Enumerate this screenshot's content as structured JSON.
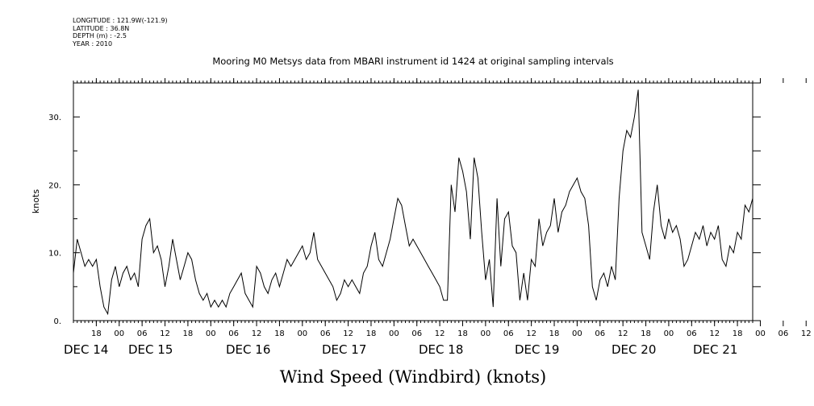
{
  "header": {
    "lines": [
      "LONGITUDE : 121.9W(-121.9)",
      "LATITUDE : 36.8N",
      "DEPTH (m) : -2.5",
      "YEAR : 2010"
    ]
  },
  "chart_data": {
    "type": "line",
    "title": "Mooring M0 Metsys data from MBARI instrument id 1424 at original sampling intervals",
    "xlabel": "Wind Speed (Windbird) (knots)",
    "ylabel": "knots",
    "ylim": [
      0,
      35
    ],
    "xlim": [
      "2010-12-14T12:00",
      "2010-12-21T22:00"
    ],
    "y_ticks": [
      0,
      10,
      20,
      30
    ],
    "y_tick_labels": [
      "0.",
      "10.",
      "20.",
      "30."
    ],
    "hour_tick_labels": [
      "18",
      "00",
      "06",
      "12",
      "18",
      "00",
      "06",
      "12",
      "18",
      "00",
      "06",
      "12",
      "18",
      "00",
      "06",
      "12",
      "18",
      "00",
      "06",
      "12",
      "18",
      "00",
      "06",
      "12",
      "18",
      "00",
      "06",
      "12",
      "18",
      "00",
      "06",
      "12"
    ],
    "day_labels": [
      "DEC 14",
      "DEC 15",
      "DEC 16",
      "DEC 17",
      "DEC 18",
      "DEC 19",
      "DEC 20",
      "DEC 21"
    ],
    "grid": false,
    "series": [
      {
        "color": "#000000",
        "x_hours_from_start": [
          0,
          1,
          2,
          3,
          4,
          5,
          6,
          7,
          8,
          9,
          10,
          11,
          12,
          13,
          14,
          15,
          16,
          17,
          18,
          19,
          20,
          21,
          22,
          23,
          24,
          25,
          26,
          27,
          28,
          29,
          30,
          31,
          32,
          33,
          34,
          35,
          36,
          37,
          38,
          39,
          40,
          41,
          42,
          43,
          44,
          45,
          46,
          47,
          48,
          49,
          50,
          51,
          52,
          53,
          54,
          55,
          56,
          57,
          58,
          59,
          60,
          61,
          62,
          63,
          64,
          65,
          66,
          67,
          68,
          69,
          70,
          71,
          72,
          73,
          74,
          75,
          76,
          77,
          78,
          79,
          80,
          81,
          82,
          83,
          84,
          85,
          86,
          87,
          88,
          89,
          90,
          91,
          92,
          93,
          94,
          95,
          96,
          97,
          98,
          99,
          100,
          101,
          102,
          103,
          104,
          105,
          106,
          107,
          108,
          109,
          110,
          111,
          112,
          113,
          114,
          115,
          116,
          117,
          118,
          119,
          120,
          121,
          122,
          123,
          124,
          125,
          126,
          127,
          128,
          129,
          130,
          131,
          132,
          133,
          134,
          135,
          136,
          137,
          138,
          139,
          140,
          141,
          142,
          143,
          144,
          145,
          146,
          147,
          148,
          149,
          150,
          151,
          152,
          153,
          154,
          155,
          156,
          157,
          158,
          159,
          160,
          161,
          162,
          163,
          164,
          165,
          166,
          167,
          168,
          169,
          170,
          171,
          172,
          173,
          174,
          175,
          176,
          177,
          178
        ],
        "values": [
          7,
          12,
          10,
          8,
          9,
          8,
          9,
          5,
          2,
          1,
          6,
          8,
          5,
          7,
          8,
          6,
          7,
          5,
          12,
          14,
          15,
          10,
          11,
          9,
          5,
          8,
          12,
          9,
          6,
          8,
          10,
          9,
          6,
          4,
          3,
          4,
          2,
          3,
          2,
          3,
          2,
          4,
          5,
          6,
          7,
          4,
          3,
          2,
          8,
          7,
          5,
          4,
          6,
          7,
          5,
          7,
          9,
          8,
          9,
          10,
          11,
          9,
          10,
          13,
          9,
          8,
          7,
          6,
          5,
          3,
          4,
          6,
          5,
          6,
          5,
          4,
          7,
          8,
          11,
          13,
          9,
          8,
          10,
          12,
          15,
          18,
          17,
          14,
          11,
          12,
          11,
          10,
          9,
          8,
          7,
          6,
          5,
          3,
          3,
          20,
          16,
          24,
          22,
          19,
          12,
          24,
          21,
          13,
          6,
          9,
          2,
          18,
          8,
          15,
          16,
          11,
          10,
          3,
          7,
          3,
          9,
          8,
          15,
          11,
          13,
          14,
          18,
          13,
          16,
          17,
          19,
          20,
          21,
          19,
          18,
          14,
          5,
          3,
          6,
          7,
          5,
          8,
          6,
          18,
          25,
          28,
          27,
          30,
          34,
          13,
          11,
          9,
          16,
          20,
          14,
          12,
          15,
          13,
          14,
          12,
          8,
          9,
          11,
          13,
          12,
          14,
          11,
          13,
          12,
          14,
          9,
          8,
          11,
          10,
          13,
          12,
          17,
          16,
          18
        ]
      }
    ]
  }
}
